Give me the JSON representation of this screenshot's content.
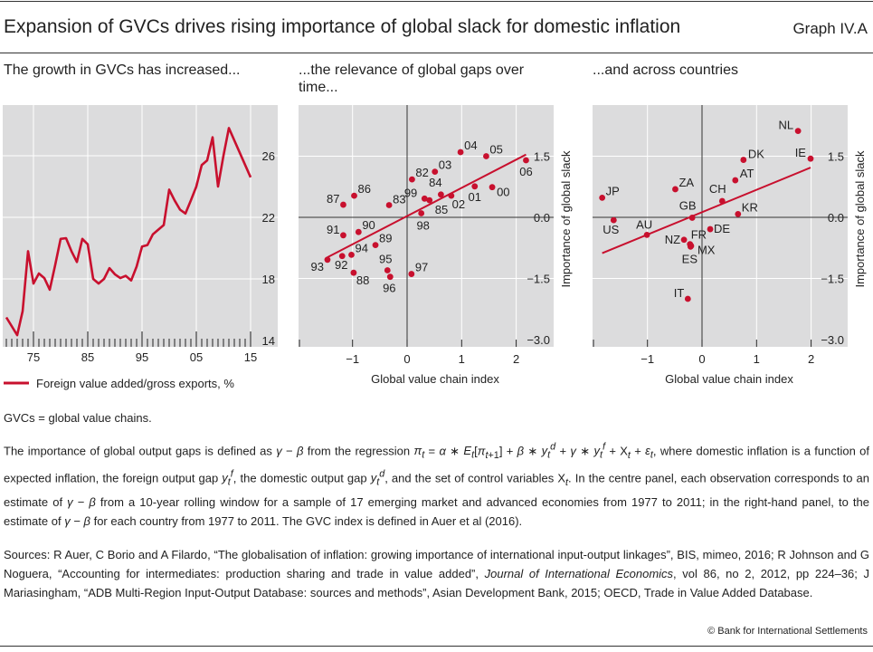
{
  "header": {
    "title": "Expansion of GVCs drives rising importance of global slack for domestic inflation",
    "graph_number": "Graph IV.A"
  },
  "panels": {
    "left_title": "The growth in GVCs has increased...",
    "center_title_line1": "...the relevance of global gaps over",
    "center_title_line2": "time...",
    "right_title": "...and across countries"
  },
  "colors": {
    "series": "#c8102e",
    "plot_bg": "#dcdcdd",
    "grid": "#ffffff",
    "axis": "#333333"
  },
  "chart_data": [
    {
      "type": "line",
      "title": "The growth in GVCs has increased...",
      "xlabel": "",
      "ylabel": "",
      "x_ticks": [
        {
          "v": 1975,
          "label": "75"
        },
        {
          "v": 1985,
          "label": "85"
        },
        {
          "v": 1995,
          "label": "95"
        },
        {
          "v": 2005,
          "label": "05"
        },
        {
          "v": 2015,
          "label": "15"
        }
      ],
      "y_ticks": [
        14,
        18,
        22,
        26
      ],
      "xlim": [
        1969.5,
        2017.5
      ],
      "ylim": [
        13.6,
        28.6
      ],
      "grid": true,
      "legend_position": "bottom-left",
      "series": [
        {
          "name": "Foreign value added/gross exports, %",
          "x": [
            1970,
            1972,
            1973,
            1974,
            1975,
            1976,
            1977,
            1978,
            1979,
            1980,
            1981,
            1982,
            1983,
            1984,
            1985,
            1986,
            1987,
            1988,
            1989,
            1990,
            1991,
            1992,
            1993,
            1994,
            1995,
            1996,
            1997,
            1998,
            1999,
            2000,
            2001,
            2002,
            2003,
            2004,
            2005,
            2006,
            2007,
            2008,
            2009,
            2010,
            2011,
            2015
          ],
          "values": [
            15.5,
            14.35,
            15.9,
            19.8,
            17.7,
            18.35,
            18.05,
            17.3,
            18.9,
            20.6,
            20.65,
            19.8,
            19.1,
            20.6,
            20.25,
            18.0,
            17.7,
            18.0,
            18.7,
            18.3,
            18.05,
            18.2,
            17.9,
            18.8,
            20.1,
            20.2,
            20.9,
            21.2,
            21.5,
            23.8,
            23.1,
            22.5,
            22.25,
            23.1,
            24.0,
            25.4,
            25.7,
            27.2,
            24.0,
            26.0,
            27.8,
            24.6
          ]
        }
      ]
    },
    {
      "type": "scatter",
      "title": "...the relevance of global gaps over time...",
      "xlabel": "Global value chain index",
      "ylabel": "Importance of global slack",
      "x_ticks": [
        -1,
        0,
        1,
        2
      ],
      "x_tick_labels": [
        "−1",
        "0",
        "1",
        "2"
      ],
      "y_ticks": [
        1.5,
        0.0,
        -1.5,
        -3.0
      ],
      "y_tick_labels": [
        "1.5",
        "0.0",
        "−1.5",
        "−3.0"
      ],
      "xlim": [
        -1.98,
        2.7
      ],
      "ylim": [
        -3.15,
        3.0
      ],
      "grid": true,
      "points": [
        {
          "label": "04",
          "x": 0.98,
          "y": 1.6
        },
        {
          "label": "05",
          "x": 1.45,
          "y": 1.5
        },
        {
          "label": "06",
          "x": 2.18,
          "y": 1.4
        },
        {
          "label": "03",
          "x": 0.51,
          "y": 1.12
        },
        {
          "label": "82",
          "x": 0.09,
          "y": 0.93
        },
        {
          "label": "84",
          "x": 0.62,
          "y": 0.56
        },
        {
          "label": "02",
          "x": 0.81,
          "y": 0.53
        },
        {
          "label": "01",
          "x": 1.24,
          "y": 0.76
        },
        {
          "label": "00",
          "x": 1.56,
          "y": 0.74
        },
        {
          "label": "99",
          "x": 0.32,
          "y": 0.46
        },
        {
          "label": "85",
          "x": 0.41,
          "y": 0.42
        },
        {
          "label": "83",
          "x": -0.33,
          "y": 0.3
        },
        {
          "label": "98",
          "x": 0.26,
          "y": 0.1
        },
        {
          "label": "86",
          "x": -0.97,
          "y": 0.53
        },
        {
          "label": "87",
          "x": -1.17,
          "y": 0.31
        },
        {
          "label": "90",
          "x": -0.89,
          "y": -0.36
        },
        {
          "label": "91",
          "x": -1.17,
          "y": -0.44
        },
        {
          "label": "89",
          "x": -0.58,
          "y": -0.68
        },
        {
          "label": "94",
          "x": -1.02,
          "y": -0.92
        },
        {
          "label": "92",
          "x": -1.19,
          "y": -0.95
        },
        {
          "label": "93",
          "x": -1.46,
          "y": -1.04
        },
        {
          "label": "88",
          "x": -0.98,
          "y": -1.36
        },
        {
          "label": "95",
          "x": -0.36,
          "y": -1.3
        },
        {
          "label": "96",
          "x": -0.31,
          "y": -1.46
        },
        {
          "label": "97",
          "x": 0.08,
          "y": -1.39
        }
      ],
      "fit_line": {
        "x": [
          -1.46,
          2.18
        ],
        "y": [
          -0.98,
          1.54
        ]
      }
    },
    {
      "type": "scatter",
      "title": "...and across countries",
      "xlabel": "Global value chain index",
      "ylabel": "Importance of global slack",
      "x_ticks": [
        -1,
        0,
        1,
        2
      ],
      "x_tick_labels": [
        "−1",
        "0",
        "1",
        "2"
      ],
      "y_ticks": [
        1.5,
        0.0,
        -1.5,
        -3.0
      ],
      "y_tick_labels": [
        "1.5",
        "0.0",
        "−1.5",
        "−3.0"
      ],
      "xlim": [
        -2.0,
        2.7
      ],
      "ylim": [
        -3.15,
        3.0
      ],
      "grid": true,
      "points": [
        {
          "label": "NL",
          "x": 1.76,
          "y": 2.12
        },
        {
          "label": "IE",
          "x": 1.99,
          "y": 1.44
        },
        {
          "label": "DK",
          "x": 0.76,
          "y": 1.41
        },
        {
          "label": "AT",
          "x": 0.61,
          "y": 0.91
        },
        {
          "label": "ZA",
          "x": -0.49,
          "y": 0.69
        },
        {
          "label": "JP",
          "x": -1.83,
          "y": 0.48
        },
        {
          "label": "CH",
          "x": 0.37,
          "y": 0.4
        },
        {
          "label": "GB",
          "x": -0.18,
          "y": -0.01
        },
        {
          "label": "KR",
          "x": 0.66,
          "y": 0.08
        },
        {
          "label": "US",
          "x": -1.62,
          "y": -0.07
        },
        {
          "label": "AU",
          "x": -1.01,
          "y": -0.43
        },
        {
          "label": "DE",
          "x": 0.15,
          "y": -0.29
        },
        {
          "label": "NZ",
          "x": -0.33,
          "y": -0.55
        },
        {
          "label": "FR",
          "x": -0.22,
          "y": -0.66
        },
        {
          "label": "MX",
          "x": -0.2,
          "y": -0.7
        },
        {
          "label": "ES",
          "x": -0.21,
          "y": -0.72
        },
        {
          "label": "IT",
          "x": -0.26,
          "y": -2.0
        }
      ],
      "fit_line": {
        "x": [
          -1.83,
          1.99
        ],
        "y": [
          -0.88,
          1.22
        ]
      }
    }
  ],
  "notes": {
    "abbrev": "GVCs = global value chains.",
    "definition_html": "The importance of global output gaps is defined as <i>γ</i> − <i>β</i> from the regression <i>π<sub>t</sub></i> = <i>α</i> ∗ <i>E<sub>t</sub></i>[<i>π</i><sub><i>t</i>+1</sub>] + <i>β</i> ∗ <i>y<sub>t</sub><sup>d</sup></i> + <i>γ</i> ∗ <i>y<sub>t</sub><sup>f</sup></i> + X<sub><i>t</i></sub> + <i>ε<sub>t</sub></i>, where domestic inflation is a function of expected inflation, the foreign output gap <i>y<sub>t</sub><sup>f</sup></i>, the domestic output gap <i>y<sub>t</sub><sup>d</sup></i>, and the set of control variables X<sub><i>t</i></sub>. In the centre panel, each observation corresponds to an estimate of <i>γ</i> − <i>β</i> from a 10-year rolling window for a sample of 17 emerging market and advanced economies from 1977 to 2011; in the right-hand panel, to the estimate of <i>γ</i> − <i>β</i> for each country from 1977 to 2011. The GVC index is defined in Auer et al (2016).",
    "sources_html": "Sources: R Auer, C Borio and A Filardo, “The globalisation of inflation: growing importance of international input-output linkages”, BIS, mimeo, 2016; R Johnson and G Noguera, “Accounting for intermediates: production sharing and trade in value added”, <i>Journal of International Economics</i>, vol 86, no 2, 2012, pp 224–36; J Mariasingham, “ADB Multi-Region Input-Output Database: sources and methods”, Asian Development Bank, 2015; OECD, Trade in Value Added Database.",
    "copyright": "© Bank for International Settlements"
  }
}
